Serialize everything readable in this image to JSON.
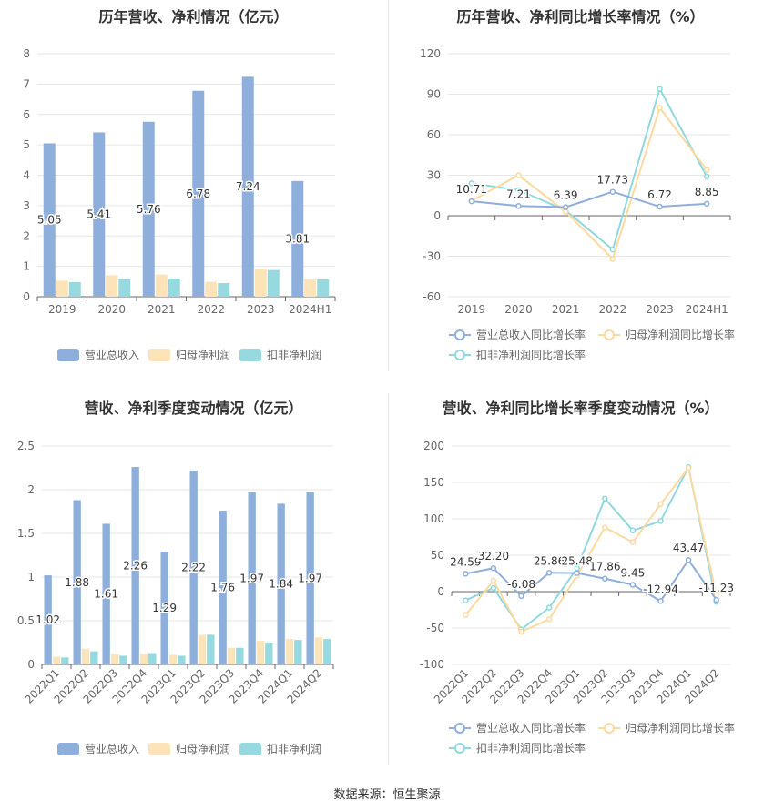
{
  "source_label": "数据来源：恒生聚源",
  "colors": {
    "revenue": "#8eaedc",
    "net": "#fde3b8",
    "deducted": "#96d9de",
    "revenue_line": "#8eaedc",
    "net_line": "#fcd9a0",
    "deducted_line": "#8fd8dc"
  },
  "chart_data": [
    {
      "type": "bar",
      "title": "历年营收、净利情况（亿元）",
      "categories": [
        "2019",
        "2020",
        "2021",
        "2022",
        "2023",
        "2024H1"
      ],
      "ylim": [
        0,
        8
      ],
      "yticks": [
        "0",
        "1",
        "2",
        "3",
        "4",
        "5",
        "6",
        "7",
        "8"
      ],
      "series": [
        {
          "name": "营业总收入",
          "values": [
            5.05,
            5.41,
            5.76,
            6.78,
            7.24,
            3.81
          ],
          "labels": [
            "5.05",
            "5.41",
            "5.76",
            "6.78",
            "7.24",
            "3.81"
          ]
        },
        {
          "name": "归母净利润",
          "values": [
            0.53,
            0.71,
            0.73,
            0.49,
            0.9,
            0.58
          ]
        },
        {
          "name": "扣非净利润",
          "values": [
            0.48,
            0.58,
            0.6,
            0.45,
            0.88,
            0.57
          ]
        }
      ],
      "legend": "bottom"
    },
    {
      "type": "line",
      "title": "历年营收、净利同比增长率情况（%）",
      "categories": [
        "2019",
        "2020",
        "2021",
        "2022",
        "2023",
        "2024H1"
      ],
      "ylim": [
        -60,
        120
      ],
      "yticks": [
        "-60",
        "-30",
        "0",
        "30",
        "60",
        "90",
        "120"
      ],
      "series": [
        {
          "name": "营业总收入同比增长率",
          "values": [
            10.71,
            7.21,
            6.39,
            17.73,
            6.72,
            8.85
          ],
          "labels": [
            "10.71",
            "7.21",
            "6.39",
            "17.73",
            "6.72",
            "8.85"
          ]
        },
        {
          "name": "归母净利润同比增长率",
          "values": [
            11,
            30,
            3,
            -32,
            80,
            34
          ]
        },
        {
          "name": "扣非净利润同比增长率",
          "values": [
            24,
            19,
            4,
            -25,
            94,
            29
          ]
        }
      ],
      "legend": "bottom"
    },
    {
      "type": "bar",
      "title": "营收、净利季度变动情况（亿元）",
      "categories": [
        "2022Q1",
        "2022Q2",
        "2022Q3",
        "2022Q4",
        "2023Q1",
        "2023Q2",
        "2023Q3",
        "2023Q4",
        "2024Q1",
        "2024Q2"
      ],
      "ylim": [
        0,
        2.5
      ],
      "yticks": [
        "0",
        "0.5",
        "1",
        "1.5",
        "2",
        "2.5"
      ],
      "series": [
        {
          "name": "营业总收入",
          "values": [
            1.02,
            1.88,
            1.61,
            2.26,
            1.29,
            2.22,
            1.76,
            1.97,
            1.84,
            1.97
          ],
          "labels": [
            "1.02",
            "1.88",
            "1.61",
            "2.26",
            "1.29",
            "2.22",
            "1.76",
            "1.97",
            "1.84",
            "1.97"
          ]
        },
        {
          "name": "归母净利润",
          "values": [
            0.09,
            0.18,
            0.12,
            0.12,
            0.11,
            0.34,
            0.19,
            0.27,
            0.29,
            0.31
          ]
        },
        {
          "name": "扣非净利润",
          "values": [
            0.08,
            0.15,
            0.1,
            0.13,
            0.1,
            0.34,
            0.19,
            0.25,
            0.28,
            0.29
          ]
        }
      ],
      "legend": "bottom"
    },
    {
      "type": "line",
      "title": "营收、净利同比增长率季度变动情况（%）",
      "categories": [
        "2022Q1",
        "2022Q2",
        "2022Q3",
        "2022Q4",
        "2023Q1",
        "2023Q2",
        "2023Q3",
        "2023Q4",
        "2024Q1",
        "2024Q2"
      ],
      "ylim": [
        -100,
        200
      ],
      "yticks": [
        "-100",
        "-50",
        "0",
        "50",
        "100",
        "150",
        "200"
      ],
      "series": [
        {
          "name": "营业总收入同比增长率",
          "values": [
            24.59,
            32.2,
            -6.08,
            25.86,
            25.48,
            17.86,
            9.45,
            -12.94,
            43.47,
            -11.23
          ],
          "labels": [
            "24.59",
            "32.20",
            "-6.08",
            "25.86",
            "25.48",
            "17.86",
            "9.45",
            "-12.94",
            "43.47",
            "-11.23"
          ]
        },
        {
          "name": "归母净利润同比增长率",
          "values": [
            -32,
            15,
            -55,
            -38,
            22,
            88,
            68,
            120,
            170,
            -5
          ]
        },
        {
          "name": "扣非净利润同比增长率",
          "values": [
            -12,
            5,
            -52,
            -22,
            32,
            128,
            84,
            97,
            171,
            -14
          ]
        }
      ],
      "legend": "bottom"
    }
  ]
}
